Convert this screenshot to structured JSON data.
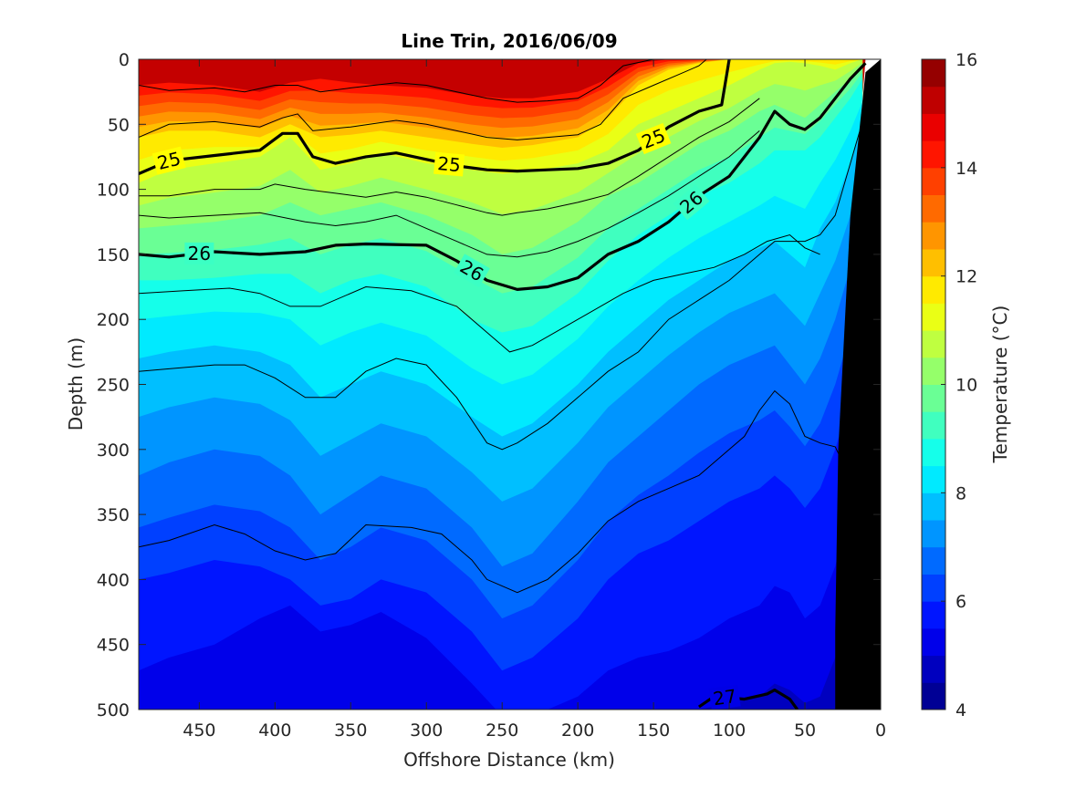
{
  "chart_data": {
    "type": "heatmap",
    "title": "Line Trin, 2016/06/09",
    "xlabel": "Offshore Distance (km)",
    "ylabel": "Depth (m)",
    "colorbar_label": "Temperature (°C)",
    "x_axis": {
      "min": 0,
      "max": 490,
      "reversed": true,
      "ticks": [
        450,
        400,
        350,
        300,
        250,
        200,
        150,
        100,
        50,
        0
      ]
    },
    "y_axis": {
      "min": 0,
      "max": 500,
      "reversed": true,
      "ticks": [
        0,
        50,
        100,
        150,
        200,
        250,
        300,
        350,
        400,
        450,
        500
      ]
    },
    "colorbar": {
      "min": 4,
      "max": 16,
      "ticks": [
        4,
        6,
        8,
        10,
        12,
        14,
        16
      ],
      "levels": [
        4,
        4.5,
        5,
        5.5,
        6,
        6.5,
        7,
        7.5,
        8,
        8.5,
        9,
        9.5,
        10,
        10.5,
        11,
        11.5,
        12,
        12.5,
        13,
        13.5,
        14,
        14.5,
        15,
        15.5,
        16
      ],
      "colormap": "jet"
    },
    "temperature_bands": [
      {
        "offshore_km": [
          490,
          470,
          440,
          410,
          390,
          370,
          350,
          330,
          300,
          270,
          250,
          230,
          200,
          180,
          160,
          140,
          120,
          100,
          80,
          70,
          60,
          50,
          40,
          30,
          20,
          12
        ],
        "isotherm_depths": [
          {
            "temp": 14.5,
            "depth": [
              20,
              18,
              20,
              25,
              18,
              15,
              18,
              20,
              22,
              28,
              30,
              30,
              25,
              15,
              3,
              0,
              0,
              0,
              0,
              0,
              0,
              0,
              0,
              0,
              0,
              0
            ]
          },
          {
            "temp": 12,
            "depth": [
              60,
              55,
              55,
              60,
              50,
              60,
              58,
              55,
              60,
              65,
              68,
              66,
              60,
              45,
              20,
              8,
              3,
              0,
              0,
              0,
              0,
              0,
              0,
              0,
              0,
              0
            ]
          },
          {
            "temp": 11,
            "depth": [
              95,
              85,
              80,
              75,
              60,
              85,
              80,
              72,
              80,
              85,
              88,
              86,
              80,
              70,
              50,
              40,
              30,
              20,
              8,
              3,
              2,
              3,
              5,
              8,
              3,
              0
            ]
          },
          {
            "temp": 10,
            "depth": [
              130,
              128,
              125,
              120,
              110,
              120,
              115,
              110,
              120,
              135,
              150,
              145,
              125,
              105,
              95,
              80,
              65,
              55,
              40,
              35,
              40,
              45,
              35,
              25,
              15,
              5
            ]
          },
          {
            "temp": 9,
            "depth": [
              170,
              170,
              168,
              165,
              165,
              180,
              170,
              165,
              175,
              200,
              210,
              205,
              180,
              155,
              135,
              120,
              105,
              95,
              80,
              70,
              70,
              70,
              60,
              45,
              30,
              15
            ]
          },
          {
            "temp": 8,
            "depth": [
              230,
              225,
              220,
              225,
              235,
              260,
              250,
              240,
              250,
              275,
              290,
              280,
              250,
              225,
              205,
              185,
              170,
              155,
              145,
              140,
              150,
              160,
              130,
              110,
              80,
              50
            ]
          },
          {
            "temp": 7,
            "depth": [
              320,
              310,
              300,
              305,
              320,
              350,
              335,
              320,
              330,
              360,
              390,
              380,
              340,
              310,
              290,
              270,
              250,
              235,
              225,
              220,
              235,
              250,
              230,
              200,
              160,
              100
            ]
          },
          {
            "temp": 6,
            "depth": [
              400,
              395,
              385,
              390,
              400,
              420,
              415,
              400,
              410,
              440,
              470,
              460,
              430,
              400,
              380,
              370,
              355,
              340,
              330,
              320,
              330,
              345,
              330,
              300,
              260,
              200
            ]
          },
          {
            "temp": 5.5,
            "depth": [
              470,
              460,
              450,
              430,
              420,
              440,
              435,
              425,
              445,
              480,
              505,
              505,
              490,
              470,
              460,
              455,
              445,
              430,
              420,
              405,
              410,
              430,
              420,
              390,
              340,
              280
            ]
          },
          {
            "temp": 5,
            "depth": [
              510,
              510,
              510,
              505,
              505,
              510,
              510,
              510,
              510,
              515,
              520,
              520,
              515,
              510,
              510,
              505,
              500,
              495,
              490,
              480,
              485,
              495,
              490,
              460,
              420,
              360
            ]
          }
        ],
        "surface_temp": 15.2
      }
    ],
    "density_contours": [
      {
        "label": "25",
        "bold": true,
        "x": [
          490,
          470,
          440,
          410,
          395,
          385,
          375,
          360,
          340,
          320,
          300,
          280,
          260,
          240,
          220,
          200,
          180,
          160,
          140,
          120,
          105,
          100
        ],
        "y": [
          88,
          78,
          74,
          70,
          57,
          57,
          75,
          80,
          75,
          72,
          77,
          82,
          85,
          86,
          85,
          84,
          80,
          70,
          52,
          40,
          35,
          0
        ]
      },
      {
        "label": "26",
        "bold": true,
        "x": [
          490,
          470,
          440,
          410,
          380,
          360,
          340,
          300,
          280,
          260,
          240,
          220,
          200,
          180,
          160,
          140,
          120,
          100,
          80,
          70,
          60,
          50,
          40,
          30,
          20,
          10
        ],
        "y": [
          150,
          152,
          148,
          150,
          148,
          143,
          142,
          143,
          155,
          170,
          177,
          175,
          168,
          150,
          140,
          125,
          105,
          90,
          60,
          40,
          50,
          54,
          45,
          30,
          15,
          3
        ]
      },
      {
        "label": "27",
        "bold": true,
        "x": [
          120,
          110,
          90,
          75,
          70,
          60,
          55
        ],
        "y": [
          498,
          490,
          492,
          488,
          485,
          492,
          500
        ]
      }
    ],
    "thin_contours": [
      {
        "x": [
          490,
          470,
          440,
          420,
          400,
          385,
          370,
          350,
          320,
          300,
          280,
          260,
          240,
          220,
          200,
          185,
          170,
          150,
          130,
          120,
          110,
          105
        ],
        "y": [
          20,
          24,
          22,
          25,
          20,
          20,
          25,
          22,
          18,
          20,
          25,
          30,
          33,
          32,
          30,
          20,
          5,
          0,
          0,
          0,
          0,
          0
        ]
      },
      {
        "x": [
          490,
          470,
          440,
          410,
          395,
          385,
          375,
          350,
          320,
          300,
          280,
          260,
          240,
          220,
          200,
          185,
          170,
          150,
          130,
          120,
          115
        ],
        "y": [
          60,
          50,
          48,
          52,
          45,
          42,
          55,
          52,
          47,
          50,
          55,
          60,
          62,
          60,
          58,
          50,
          30,
          20,
          10,
          5,
          0
        ]
      },
      {
        "x": [
          490,
          470,
          440,
          410,
          400,
          380,
          360,
          340,
          320,
          300,
          280,
          260,
          250,
          240,
          220,
          200,
          180,
          160,
          140,
          120,
          100,
          80
        ],
        "y": [
          105,
          105,
          100,
          100,
          96,
          100,
          103,
          106,
          102,
          106,
          112,
          118,
          120,
          118,
          115,
          110,
          104,
          90,
          75,
          60,
          48,
          30
        ]
      },
      {
        "x": [
          490,
          470,
          440,
          410,
          380,
          360,
          340,
          320,
          300,
          280,
          260,
          240,
          220,
          200,
          180,
          160,
          140,
          120,
          100,
          80
        ],
        "y": [
          120,
          122,
          120,
          118,
          125,
          128,
          125,
          120,
          130,
          140,
          150,
          152,
          148,
          140,
          130,
          118,
          105,
          90,
          75,
          55
        ]
      },
      {
        "x": [
          490,
          460,
          430,
          410,
          390,
          370,
          340,
          310,
          280,
          260,
          245,
          230,
          200,
          170,
          150,
          130,
          110,
          90,
          75,
          60,
          50,
          40
        ],
        "y": [
          180,
          178,
          176,
          180,
          190,
          190,
          175,
          178,
          190,
          210,
          225,
          220,
          200,
          180,
          170,
          165,
          160,
          150,
          140,
          135,
          145,
          150
        ]
      },
      {
        "x": [
          490,
          470,
          440,
          420,
          400,
          380,
          360,
          340,
          320,
          300,
          280,
          260,
          250,
          240,
          220,
          200,
          180,
          160,
          140,
          120,
          100,
          80,
          70,
          50,
          40,
          30,
          20,
          10
        ],
        "y": [
          240,
          238,
          235,
          235,
          245,
          260,
          260,
          240,
          230,
          235,
          260,
          295,
          300,
          295,
          280,
          260,
          240,
          225,
          200,
          185,
          170,
          150,
          140,
          140,
          135,
          120,
          80,
          40
        ]
      },
      {
        "x": [
          490,
          470,
          440,
          420,
          400,
          380,
          360,
          340,
          310,
          290,
          270,
          260,
          240,
          220,
          200,
          180,
          160,
          140,
          120,
          100,
          90,
          80,
          70,
          60,
          50,
          40,
          30,
          25
        ],
        "y": [
          375,
          370,
          358,
          365,
          378,
          385,
          380,
          358,
          360,
          365,
          385,
          400,
          410,
          400,
          380,
          355,
          340,
          330,
          320,
          300,
          290,
          270,
          255,
          265,
          290,
          295,
          298,
          310
        ]
      }
    ],
    "land_mask": {
      "x": [
        0,
        10,
        20,
        28,
        30,
        30,
        0
      ],
      "y": [
        0,
        10,
        120,
        300,
        440,
        500,
        500
      ]
    }
  }
}
